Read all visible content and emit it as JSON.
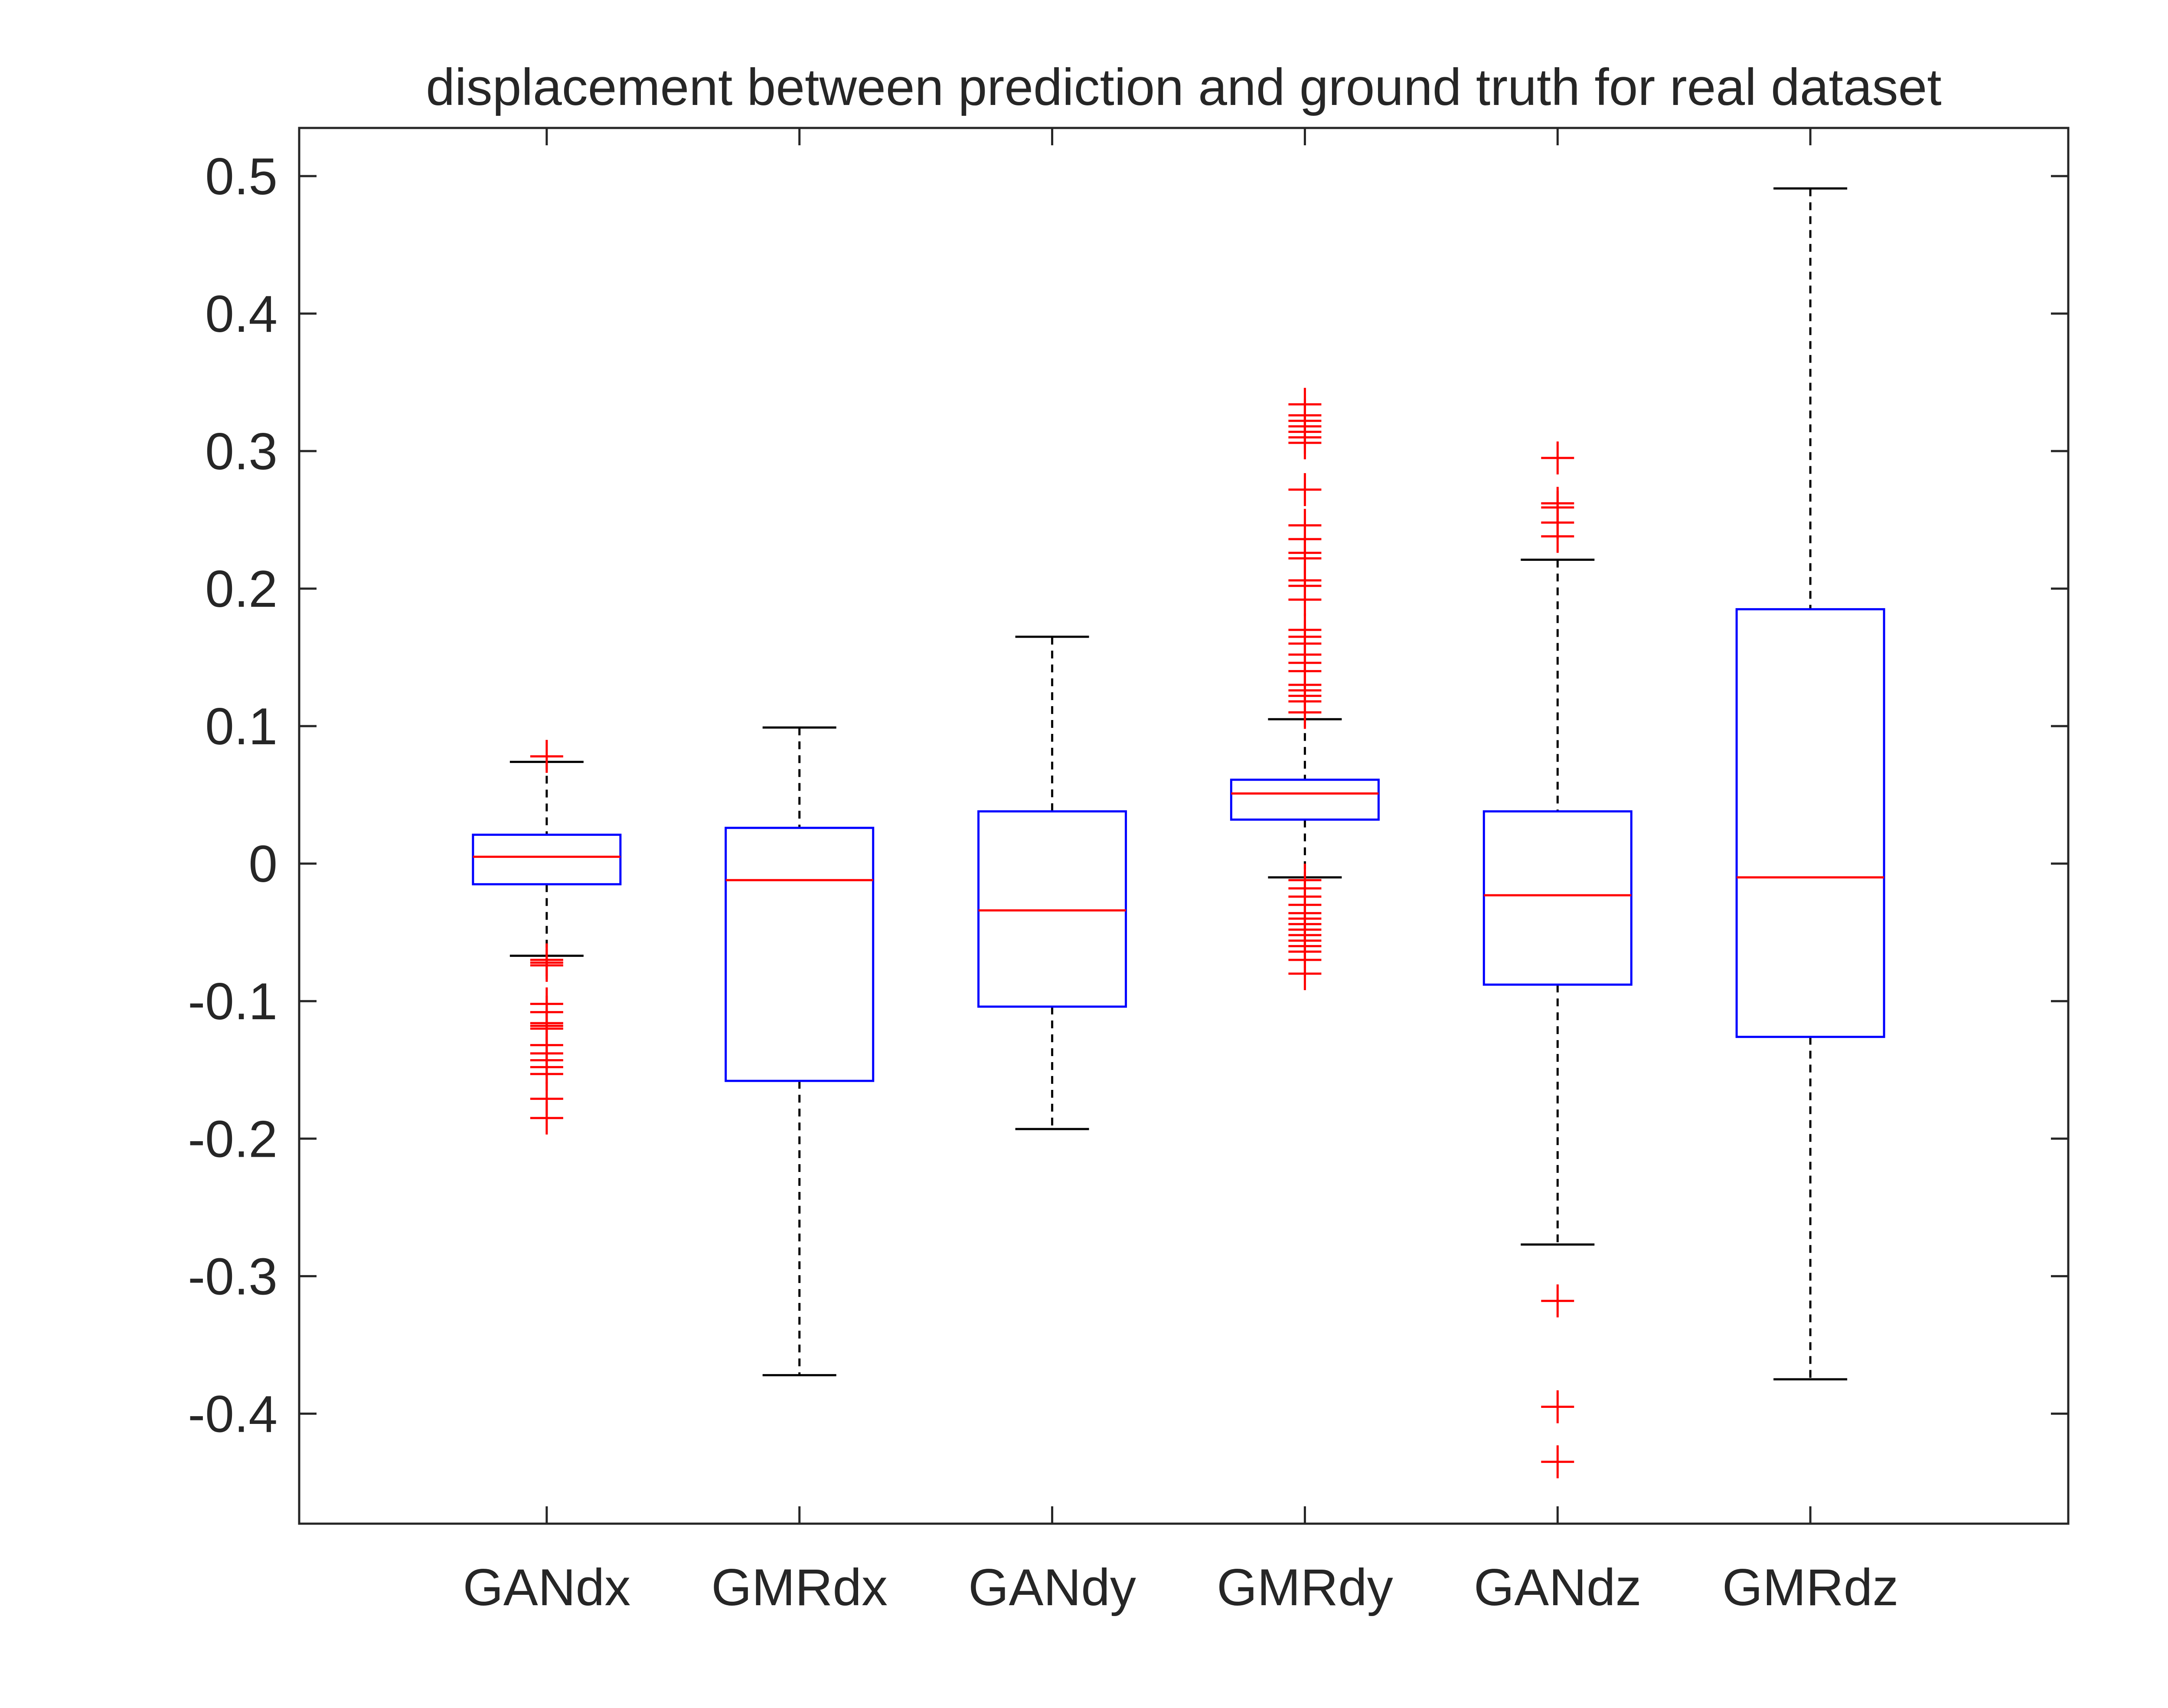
{
  "chart_data": {
    "type": "box",
    "title": "displacement between prediction and ground truth for real dataset",
    "xlabel": "",
    "ylabel": "",
    "ylim": [
      -0.48,
      0.535
    ],
    "yticks": [
      0.5,
      0.4,
      0.3,
      0.2,
      0.1,
      0,
      -0.1,
      -0.2,
      -0.3,
      -0.4
    ],
    "ytick_labels": [
      "0.5",
      "0.4",
      "0.3",
      "0.2",
      "0.1",
      "0",
      "-0.1",
      "-0.2",
      "-0.3",
      "-0.4"
    ],
    "categories": [
      "GANdx",
      "GMRdx",
      "GANdy",
      "GMRdy",
      "GANdz",
      "GMRdz"
    ],
    "boxes": [
      {
        "name": "GANdx",
        "whisker_low": -0.067,
        "q1": -0.015,
        "median": 0.005,
        "q3": 0.021,
        "whisker_high": 0.074,
        "outliers": [
          0.078,
          -0.07,
          -0.072,
          -0.074,
          -0.102,
          -0.108,
          -0.116,
          -0.118,
          -0.12,
          -0.132,
          -0.138,
          -0.143,
          -0.148,
          -0.153,
          -0.171,
          -0.185
        ]
      },
      {
        "name": "GMRdx",
        "whisker_low": -0.372,
        "q1": -0.158,
        "median": -0.012,
        "q3": 0.026,
        "whisker_high": 0.099,
        "outliers": []
      },
      {
        "name": "GANdy",
        "whisker_low": -0.193,
        "q1": -0.104,
        "median": -0.034,
        "q3": 0.038,
        "whisker_high": 0.165,
        "outliers": []
      },
      {
        "name": "GMRdy",
        "whisker_low": -0.01,
        "q1": 0.032,
        "median": 0.051,
        "q3": 0.061,
        "whisker_high": 0.105,
        "outliers": [
          0.334,
          0.326,
          0.322,
          0.318,
          0.314,
          0.31,
          0.306,
          0.272,
          0.246,
          0.236,
          0.226,
          0.222,
          0.206,
          0.202,
          0.192,
          0.17,
          0.165,
          0.16,
          0.152,
          0.146,
          0.14,
          0.13,
          0.126,
          0.122,
          0.118,
          0.11,
          -0.012,
          -0.018,
          -0.024,
          -0.03,
          -0.036,
          -0.04,
          -0.044,
          -0.048,
          -0.052,
          -0.056,
          -0.06,
          -0.064,
          -0.07,
          -0.08
        ]
      },
      {
        "name": "GANdz",
        "whisker_low": -0.277,
        "q1": -0.088,
        "median": -0.023,
        "q3": 0.038,
        "whisker_high": 0.221,
        "outliers": [
          0.295,
          0.262,
          0.259,
          0.248,
          0.238,
          -0.318,
          -0.395,
          -0.435
        ]
      },
      {
        "name": "GMRdz",
        "whisker_low": -0.375,
        "q1": -0.126,
        "median": -0.01,
        "q3": 0.185,
        "whisker_high": 0.491,
        "outliers": []
      }
    ],
    "colors": {
      "box": "#0000ff",
      "median": "#ff0000",
      "outlier": "#ff0000",
      "whisker": "#000000",
      "axis": "#262626"
    }
  }
}
